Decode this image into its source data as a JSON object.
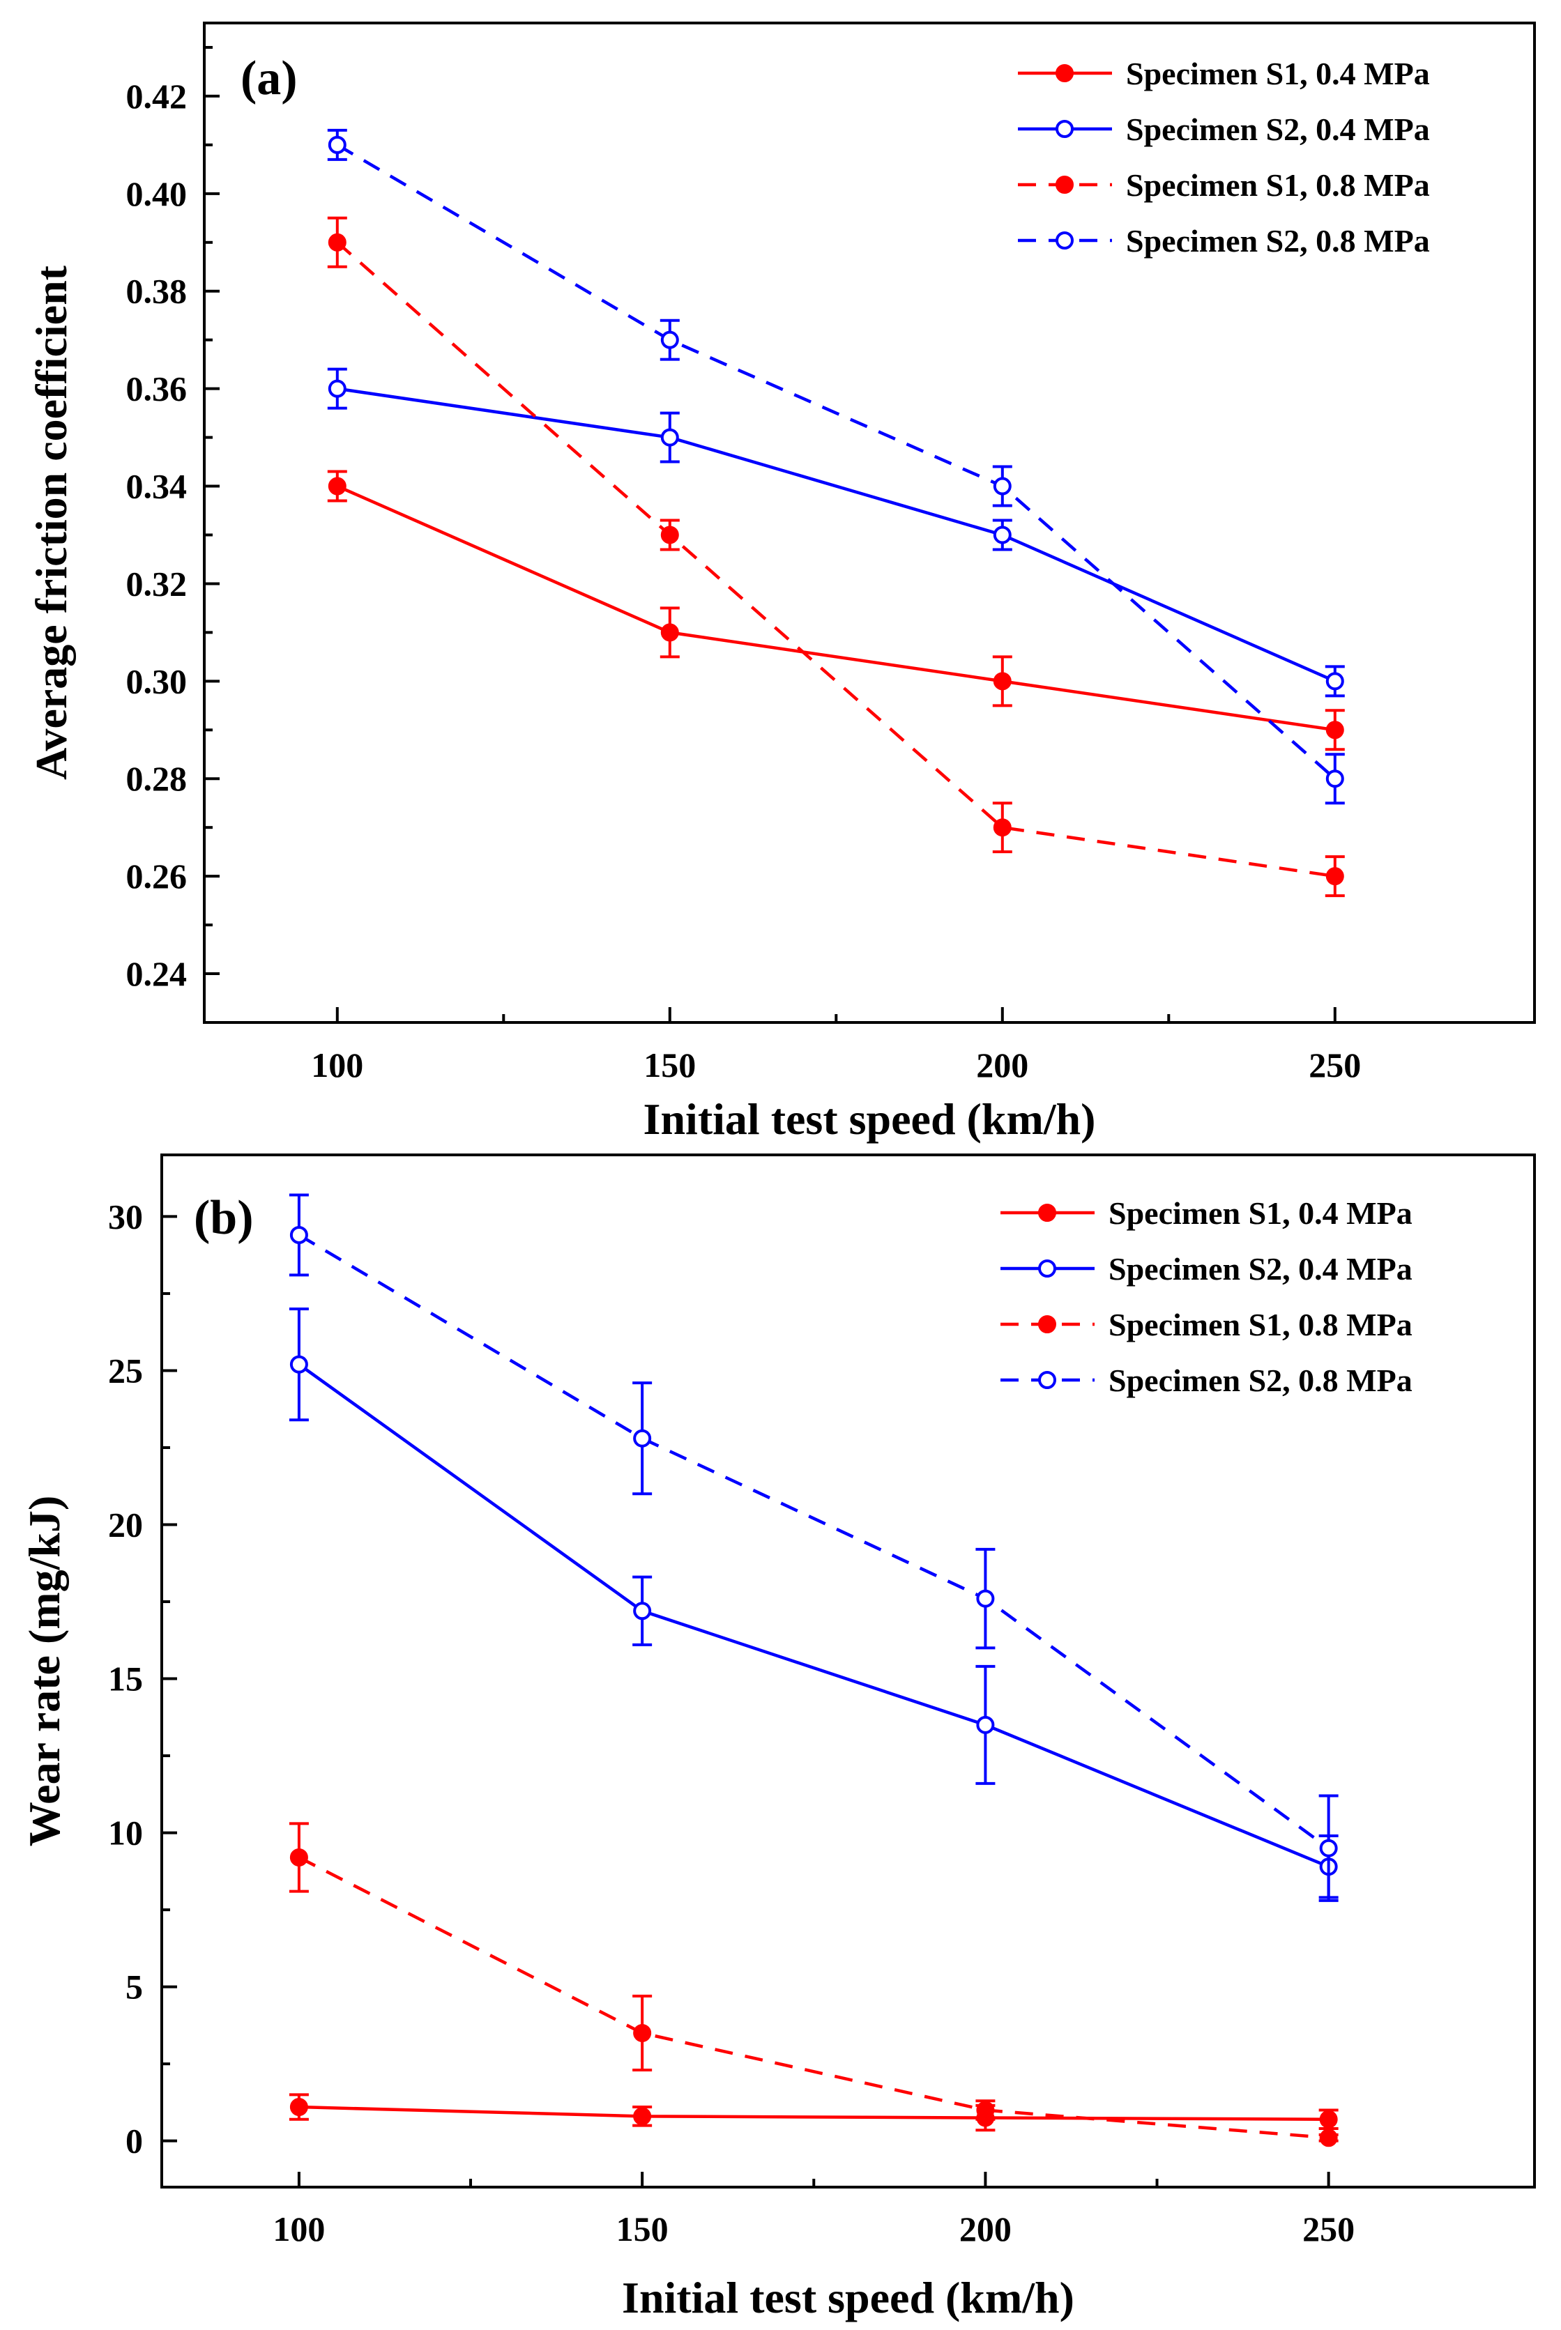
{
  "chart_data": [
    {
      "type": "line",
      "panel_label": "(a)",
      "xlabel": "Initial test speed (km/h)",
      "ylabel": "Average friction coefficient",
      "xlim": [
        80,
        280
      ],
      "ylim": [
        0.23,
        0.435
      ],
      "x_ticks": [
        100,
        150,
        200,
        250
      ],
      "x_tick_labels": [
        "100",
        "150",
        "200",
        "250"
      ],
      "y_ticks": [
        0.24,
        0.26,
        0.28,
        0.3,
        0.32,
        0.34,
        0.36,
        0.38,
        0.4,
        0.42
      ],
      "y_tick_labels": [
        "0.24",
        "0.26",
        "0.28",
        "0.30",
        "0.32",
        "0.34",
        "0.36",
        "0.38",
        "0.40",
        "0.42"
      ],
      "legend_position": "top-right",
      "grid": false,
      "x": [
        100,
        150,
        200,
        250
      ],
      "series": [
        {
          "name": "Specimen S1, 0.4 MPa",
          "color": "#ff0000",
          "dashed": false,
          "marker": "filled",
          "values": [
            0.34,
            0.31,
            0.3,
            0.29
          ],
          "errors": [
            0.003,
            0.005,
            0.005,
            0.004
          ]
        },
        {
          "name": "Specimen S2, 0.4 MPa",
          "color": "#0000ff",
          "dashed": false,
          "marker": "open",
          "values": [
            0.36,
            0.35,
            0.33,
            0.3
          ],
          "errors": [
            0.004,
            0.005,
            0.003,
            0.003
          ]
        },
        {
          "name": "Specimen S1, 0.8 MPa",
          "color": "#ff0000",
          "dashed": true,
          "marker": "filled",
          "values": [
            0.39,
            0.33,
            0.27,
            0.26
          ],
          "errors": [
            0.005,
            0.003,
            0.005,
            0.004
          ]
        },
        {
          "name": "Specimen S2, 0.8 MPa",
          "color": "#0000ff",
          "dashed": true,
          "marker": "open",
          "values": [
            0.41,
            0.37,
            0.34,
            0.28
          ],
          "errors": [
            0.003,
            0.004,
            0.004,
            0.005
          ]
        }
      ]
    },
    {
      "type": "line",
      "panel_label": "(b)",
      "xlabel": "Initial test speed (km/h)",
      "ylabel": "Wear rate (mg/kJ)",
      "xlim": [
        80,
        280
      ],
      "ylim": [
        -1.5,
        32
      ],
      "x_ticks": [
        100,
        150,
        200,
        250
      ],
      "x_tick_labels": [
        "100",
        "150",
        "200",
        "250"
      ],
      "y_ticks": [
        0,
        5,
        10,
        15,
        20,
        25,
        30
      ],
      "y_tick_labels": [
        "0",
        "5",
        "10",
        "15",
        "20",
        "25",
        "30"
      ],
      "legend_position": "top-right",
      "grid": false,
      "x": [
        100,
        150,
        200,
        250
      ],
      "series": [
        {
          "name": "Specimen S1, 0.4 MPa",
          "color": "#ff0000",
          "dashed": false,
          "marker": "filled",
          "values": [
            1.1,
            0.8,
            0.75,
            0.7
          ],
          "errors": [
            0.4,
            0.3,
            0.4,
            0.3
          ]
        },
        {
          "name": "Specimen S2, 0.4 MPa",
          "color": "#0000ff",
          "dashed": false,
          "marker": "open",
          "values": [
            25.2,
            17.2,
            13.5,
            8.9
          ],
          "errors": [
            1.8,
            1.1,
            1.9,
            1.0
          ]
        },
        {
          "name": "Specimen S1, 0.8 MPa",
          "color": "#ff0000",
          "dashed": true,
          "marker": "filled",
          "values": [
            9.2,
            3.5,
            1.0,
            0.1
          ],
          "errors": [
            1.1,
            1.2,
            0.3,
            0.1
          ]
        },
        {
          "name": "Specimen S2, 0.8 MPa",
          "color": "#0000ff",
          "dashed": true,
          "marker": "open",
          "values": [
            29.4,
            22.8,
            17.6,
            9.5
          ],
          "errors": [
            1.3,
            1.8,
            1.6,
            1.7
          ]
        }
      ]
    }
  ]
}
